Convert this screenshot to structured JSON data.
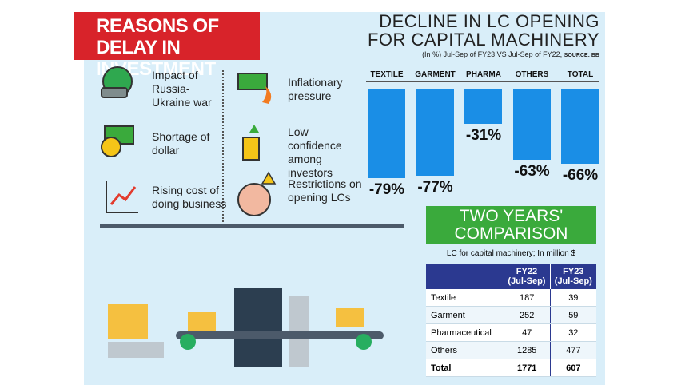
{
  "header": {
    "title": "REASONS OF DELAY IN INVESTMENT"
  },
  "reasons": [
    "Impact of Russia-Ukraine war",
    "Inflationary pressure",
    "Shortage of dollar",
    "Low confidence among investors",
    "Rising cost of doing business",
    "Restrictions on opening LCs"
  ],
  "chart_data": {
    "type": "bar",
    "title": "DECLINE IN LC OPENING FOR CAPITAL MACHINERY",
    "subtitle": "(In %) Jul-Sep of FY23 VS Jul-Sep of FY22,",
    "source": "SOURCE: BB",
    "categories": [
      "TEXTILE",
      "GARMENT",
      "PHARMA",
      "OTHERS",
      "TOTAL"
    ],
    "values": [
      -79,
      -77,
      -31,
      -63,
      -66
    ],
    "value_labels": [
      "-79%",
      "-77%",
      "-31%",
      "-63%",
      "-66%"
    ],
    "color": "#1a8ee6"
  },
  "comparison": {
    "title": "TWO YEARS' COMPARISON",
    "subtitle": "LC for capital machinery; In million $",
    "columns": [
      {
        "title": "FY22",
        "sub": "(Jul-Sep)"
      },
      {
        "title": "FY23",
        "sub": "(Jul-Sep)"
      }
    ],
    "rows": [
      [
        "Textile",
        "187",
        "39"
      ],
      [
        "Garment",
        "252",
        "59"
      ],
      [
        "Pharmaceutical",
        "47",
        "32"
      ],
      [
        "Others",
        "1285",
        "477"
      ],
      [
        "Total",
        "1771",
        "607"
      ]
    ]
  }
}
